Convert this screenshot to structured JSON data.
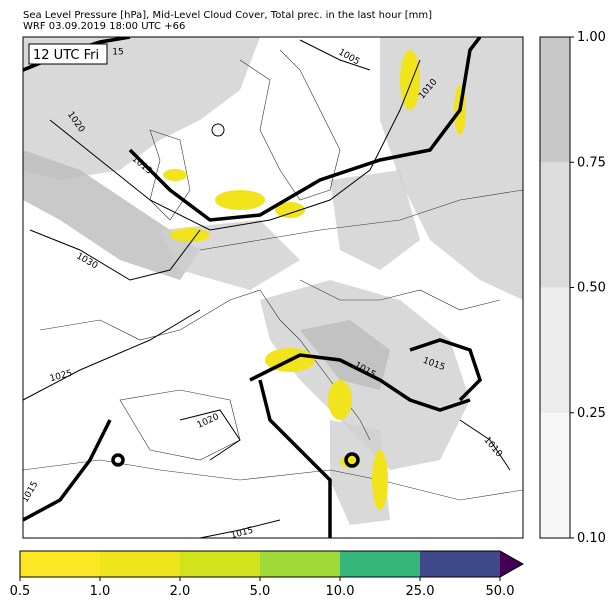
{
  "header": {
    "title": "Sea Level Pressure [hPa], Mid-Level Cloud Cover, Total prec. in the last hour [mm]",
    "subtitle": "WRF 03.09.2019 18:00 UTC +66"
  },
  "map": {
    "time_label": "12 UTC Fri",
    "isobar_labels": [
      15,
      1005,
      1010,
      1020,
      1015,
      1030,
      1025,
      1015,
      1015,
      1020,
      1010,
      1015,
      1015
    ]
  },
  "cloud_colorbar": {
    "ticks": [
      {
        "value": 0.1,
        "label": "0.10"
      },
      {
        "value": 0.25,
        "label": "0.25"
      },
      {
        "value": 0.5,
        "label": "0.50"
      },
      {
        "value": 0.75,
        "label": "0.75"
      },
      {
        "value": 1,
        "label": "1.00"
      }
    ],
    "colors": [
      "#f7f7f7",
      "#ececec",
      "#dcdcdc",
      "#c8c8c8"
    ]
  },
  "precip_colorbar": {
    "ticks": [
      0.5,
      {
        "value": 1,
        "label": "1.0"
      },
      {
        "value": 2,
        "label": "2.0"
      },
      {
        "value": 5,
        "label": "5.0"
      },
      {
        "value": 10,
        "label": "10.0"
      },
      {
        "value": 25,
        "label": "25.0"
      },
      {
        "value": 50,
        "label": "50.0"
      }
    ],
    "colors": [
      "#fde725",
      "#eee51c",
      "#d2e21b",
      "#a0da39",
      "#35b779",
      "#3e4a89",
      "#440154"
    ]
  }
}
